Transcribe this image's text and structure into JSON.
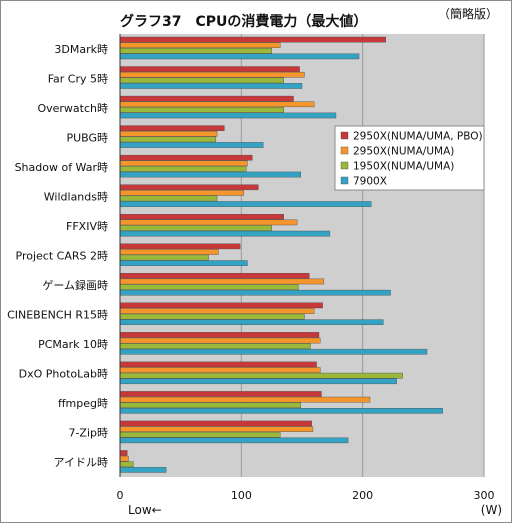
{
  "chart_data": {
    "type": "bar",
    "orientation": "horizontal",
    "title": "グラフ37　CPUの消費電力（最大値）",
    "note": "（簡略版）",
    "unit_label": "(W)",
    "direction_label": "Low←",
    "xlim": [
      0,
      300
    ],
    "xticks": [
      0,
      100,
      200,
      300
    ],
    "grid": true,
    "legend_position": "right",
    "categories": [
      "3DMark時",
      "Far Cry 5時",
      "Overwatch時",
      "PUBG時",
      "Shadow of War時",
      "Wildlands時",
      "FFXIV時",
      "Project CARS 2時",
      "ゲーム録画時",
      "CINEBENCH R15時",
      "PCMark 10時",
      "DxO PhotoLab時",
      "ffmpeg時",
      "7-Zip時",
      "アイドル時"
    ],
    "series": [
      {
        "name": "2950X(NUMA/UMA, PBO)",
        "color": "#c8383a",
        "values": [
          219,
          148,
          143,
          86,
          109,
          114,
          135,
          99,
          156,
          167,
          164,
          162,
          166,
          158,
          6
        ]
      },
      {
        "name": "2950X(NUMA/UMA)",
        "color": "#f5962c",
        "values": [
          132,
          152,
          160,
          80,
          105,
          102,
          146,
          81,
          168,
          160,
          165,
          165,
          206,
          159,
          7
        ]
      },
      {
        "name": "1950X(NUMA/UMA)",
        "color": "#9ab93a",
        "values": [
          125,
          135,
          135,
          79,
          104,
          80,
          125,
          73,
          147,
          152,
          157,
          233,
          149,
          132,
          11
        ]
      },
      {
        "name": "7900X",
        "color": "#34a3c3",
        "values": [
          197,
          150,
          178,
          118,
          149,
          207,
          173,
          105,
          223,
          217,
          253,
          228,
          266,
          188,
          38
        ]
      }
    ]
  }
}
